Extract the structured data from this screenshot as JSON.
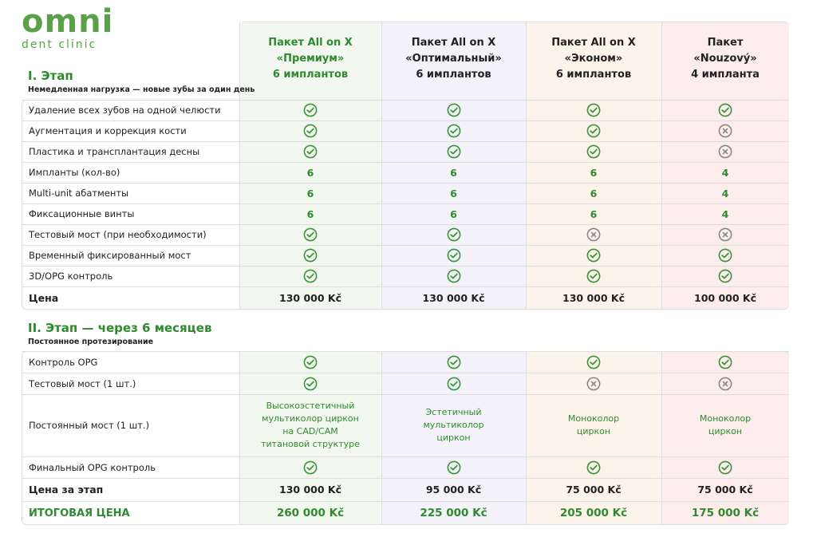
{
  "logo": {
    "name": "omni",
    "tagline": "dent clinic"
  },
  "packages": [
    {
      "lines": [
        "Пакет All on X",
        "«Премиум»",
        "6 имплантов"
      ]
    },
    {
      "lines": [
        "Пакет All on X",
        "«Оптимальный»",
        "6 имплантов"
      ]
    },
    {
      "lines": [
        "Пакет All on X",
        "«Эконом»",
        "6 имплантов"
      ]
    },
    {
      "lines": [
        "Пакет",
        "«Nouzový»",
        "4 импланта"
      ]
    }
  ],
  "stage1": {
    "title": "I. Этап",
    "subtitle": "Немедленная нагрузка — новые зубы за один день",
    "rows": [
      {
        "label": "Удаление всех зубов на одной челюсти",
        "cells": [
          true,
          true,
          true,
          true
        ]
      },
      {
        "label": "Аугментация и коррекция кости",
        "cells": [
          true,
          true,
          true,
          false
        ]
      },
      {
        "label": "Пластика и трансплантация десны",
        "cells": [
          true,
          true,
          true,
          false
        ]
      },
      {
        "label": "Импланты (кол-во)",
        "cells": [
          "6",
          "6",
          "6",
          "4"
        ]
      },
      {
        "label": "Multi-unit абатменты",
        "cells": [
          "6",
          "6",
          "6",
          "4"
        ]
      },
      {
        "label": "Фиксационные винты",
        "cells": [
          "6",
          "6",
          "6",
          "4"
        ]
      },
      {
        "label": "Тестовый мост (при необходимости)",
        "cells": [
          true,
          true,
          false,
          false
        ]
      },
      {
        "label": "Временный фиксированный мост",
        "cells": [
          true,
          true,
          true,
          true
        ]
      },
      {
        "label": "3D/OPG контроль",
        "cells": [
          true,
          true,
          true,
          true
        ]
      }
    ],
    "price": {
      "label": "Цена",
      "cells": [
        "130 000 Kč",
        "130 000 Kč",
        "130 000 Kč",
        "100 000 Kč"
      ]
    }
  },
  "stage2": {
    "title": "II. Этап — через 6 месяцев",
    "subtitle": "Постоянное протезирование",
    "rows": [
      {
        "label": "Контроль OPG",
        "cells": [
          true,
          true,
          true,
          true
        ]
      },
      {
        "label": "Тестовый мост (1 шт.)",
        "cells": [
          true,
          true,
          false,
          false
        ]
      },
      {
        "label": "Постоянный мост (1 шт.)",
        "cells": [
          [
            "Высокоэстетичный",
            "мультиколор циркон",
            "на CAD/CAM",
            "титановой структуре"
          ],
          [
            "Эстетичный",
            "мультиколор",
            "циркон"
          ],
          [
            "Моноколор",
            "циркон"
          ],
          [
            "Моноколор",
            "циркон"
          ]
        ]
      },
      {
        "label": "Финальный OPG контроль",
        "cells": [
          true,
          true,
          true,
          true
        ]
      }
    ],
    "stage_price": {
      "label": "Цена за этап",
      "cells": [
        "130 000 Kč",
        "95 000 Kč",
        "75 000 Kč",
        "75 000 Kč"
      ]
    },
    "total": {
      "label": "ИТОГОВАЯ ЦЕНА",
      "cells": [
        "260 000 Kč",
        "225 000 Kč",
        "205 000 Kč",
        "175 000 Kč"
      ]
    }
  }
}
